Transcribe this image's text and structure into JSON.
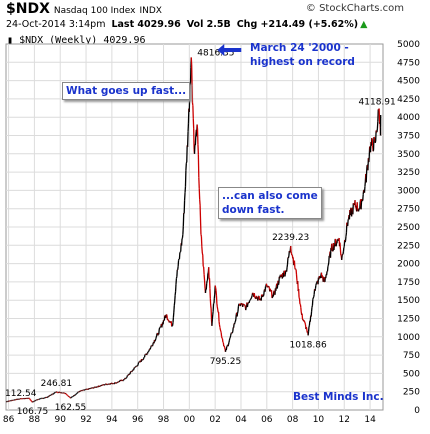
{
  "header": {
    "symbol": "$NDX",
    "name": "Nasdaq 100 Index",
    "exchange": "INDX",
    "brand": "© StockCharts.com",
    "datetime": "24-Oct-2014 3:14pm",
    "last": "Last 4029.96",
    "vol": "Vol 2.5B",
    "chg": "Chg +214.49 (+5.62%)",
    "chg_arrow": "▲",
    "legend": "$NDX (Weekly) 4029.96"
  },
  "annotations": {
    "record": [
      "March 24 '2000 -",
      "highest on record"
    ],
    "up_fast": "What goes up fast...",
    "down_fast": [
      "...can also come",
      "down fast."
    ],
    "credit": "Best Minds Inc."
  },
  "colors": {
    "up": "#000000",
    "down": "#cc0000",
    "grid": "#dcdcdc",
    "annotation": "#1a33cc"
  },
  "chart_data": {
    "type": "line",
    "title": "$NDX (Weekly) 4029.96",
    "ylim": [
      0,
      5000
    ],
    "yticks": [
      0,
      250,
      500,
      750,
      1000,
      1250,
      1500,
      1750,
      2000,
      2250,
      2500,
      2750,
      3000,
      3250,
      3500,
      3750,
      4000,
      4250,
      4500,
      4750,
      5000
    ],
    "xlim": [
      1985.8,
      2015.0
    ],
    "xticks": [
      {
        "x": 1986,
        "label": "86"
      },
      {
        "x": 1988,
        "label": "88"
      },
      {
        "x": 1990,
        "label": "90"
      },
      {
        "x": 1992,
        "label": "92"
      },
      {
        "x": 1994,
        "label": "94"
      },
      {
        "x": 1996,
        "label": "96"
      },
      {
        "x": 1998,
        "label": "98"
      },
      {
        "x": 2000,
        "label": "00"
      },
      {
        "x": 2002,
        "label": "02"
      },
      {
        "x": 2004,
        "label": "04"
      },
      {
        "x": 2006,
        "label": "06"
      },
      {
        "x": 2008,
        "label": "08"
      },
      {
        "x": 2010,
        "label": "10"
      },
      {
        "x": 2012,
        "label": "12"
      },
      {
        "x": 2014,
        "label": "14"
      }
    ],
    "grid": true,
    "series": [
      {
        "points": [
          [
            1985.8,
            112.54
          ],
          [
            1986.5,
            140
          ],
          [
            1987.0,
            155
          ],
          [
            1987.6,
            160
          ],
          [
            1987.85,
            106.75
          ],
          [
            1988.2,
            140
          ],
          [
            1989.0,
            175
          ],
          [
            1989.7,
            246.81
          ],
          [
            1990.4,
            230
          ],
          [
            1990.8,
            162.55
          ],
          [
            1991.5,
            255
          ],
          [
            1992.5,
            300
          ],
          [
            1993.5,
            350
          ],
          [
            1994.3,
            370
          ],
          [
            1995.0,
            420
          ],
          [
            1995.9,
            600
          ],
          [
            1996.5,
            720
          ],
          [
            1997.0,
            850
          ],
          [
            1997.6,
            1050
          ],
          [
            1998.2,
            1300
          ],
          [
            1998.7,
            1150
          ],
          [
            1999.0,
            1800
          ],
          [
            1999.5,
            2400
          ],
          [
            1999.9,
            3800
          ],
          [
            2000.15,
            4816.35
          ],
          [
            2000.4,
            3500
          ],
          [
            2000.6,
            3900
          ],
          [
            2000.9,
            2400
          ],
          [
            2001.25,
            1600
          ],
          [
            2001.5,
            1950
          ],
          [
            2001.75,
            1150
          ],
          [
            2002.0,
            1700
          ],
          [
            2002.4,
            1100
          ],
          [
            2002.8,
            795.25
          ],
          [
            2003.3,
            1050
          ],
          [
            2003.9,
            1450
          ],
          [
            2004.4,
            1400
          ],
          [
            2004.9,
            1600
          ],
          [
            2005.5,
            1500
          ],
          [
            2006.0,
            1700
          ],
          [
            2006.5,
            1550
          ],
          [
            2007.0,
            1800
          ],
          [
            2007.5,
            1900
          ],
          [
            2007.85,
            2239.23
          ],
          [
            2008.3,
            1850
          ],
          [
            2008.7,
            1300
          ],
          [
            2009.1,
            1100
          ],
          [
            2009.2,
            1018.86
          ],
          [
            2009.7,
            1650
          ],
          [
            2010.2,
            1850
          ],
          [
            2010.5,
            1750
          ],
          [
            2011.0,
            2200
          ],
          [
            2011.6,
            2350
          ],
          [
            2011.8,
            2050
          ],
          [
            2012.3,
            2600
          ],
          [
            2012.8,
            2800
          ],
          [
            2013.2,
            2750
          ],
          [
            2013.6,
            3050
          ],
          [
            2014.0,
            3600
          ],
          [
            2014.4,
            3650
          ],
          [
            2014.7,
            4118.91
          ],
          [
            2014.81,
            3750
          ],
          [
            2014.82,
            4029.96
          ]
        ]
      }
    ],
    "point_labels": [
      {
        "x": 1985.8,
        "y": 112.54,
        "text": "112.54"
      },
      {
        "x": 1987.85,
        "y": 106.75,
        "text": "106.75"
      },
      {
        "x": 1989.7,
        "y": 246.81,
        "text": "246.81"
      },
      {
        "x": 1990.8,
        "y": 162.55,
        "text": "162.55"
      },
      {
        "x": 2000.15,
        "y": 4816.35,
        "text": "4816.35"
      },
      {
        "x": 2002.8,
        "y": 795.25,
        "text": "795.25"
      },
      {
        "x": 2007.85,
        "y": 2239.23,
        "text": "2239.23"
      },
      {
        "x": 2009.2,
        "y": 1018.86,
        "text": "1018.86"
      },
      {
        "x": 2014.7,
        "y": 4118.91,
        "text": "4118.91"
      }
    ]
  }
}
